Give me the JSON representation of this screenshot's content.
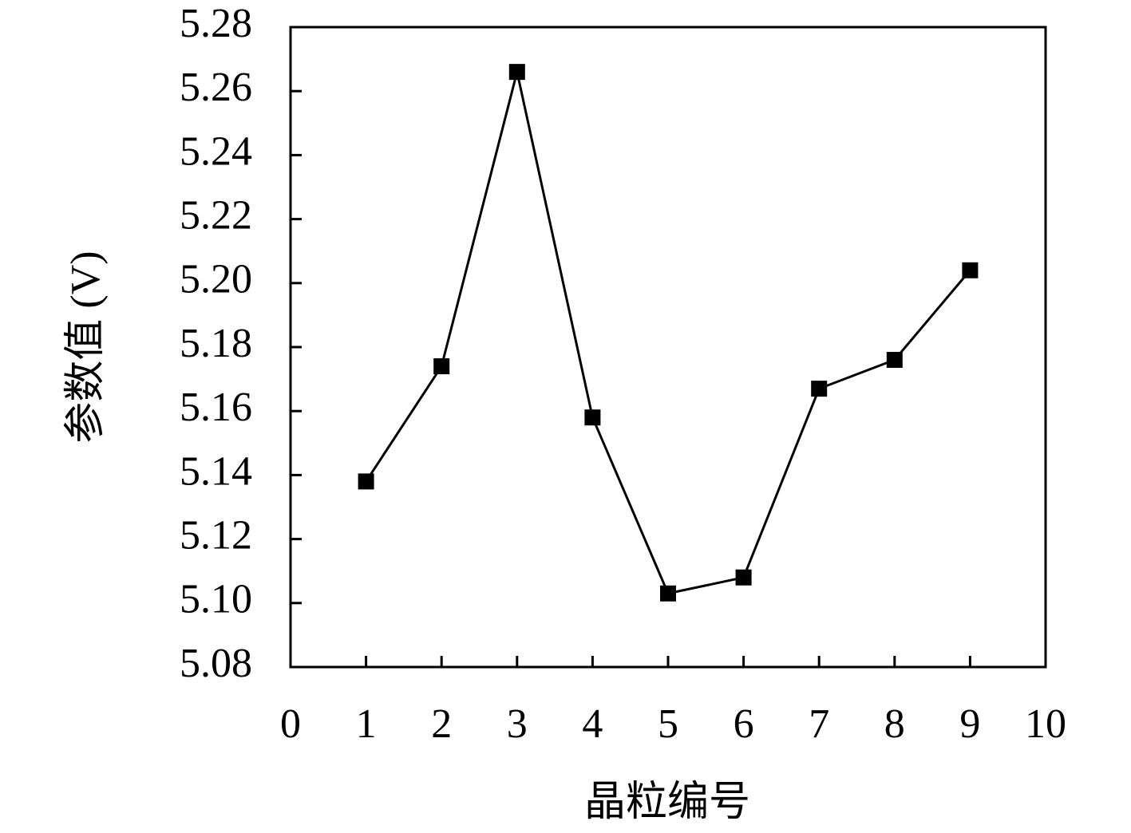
{
  "chart_data": {
    "type": "line",
    "x_label": "晶粒编号",
    "y_label": "参数值 (V)",
    "x": [
      1,
      2,
      3,
      4,
      5,
      6,
      7,
      8,
      9
    ],
    "values": [
      5.138,
      5.174,
      5.266,
      5.158,
      5.103,
      5.108,
      5.167,
      5.176,
      5.204
    ],
    "color": "#000000",
    "marker": "square",
    "xlim": [
      0,
      10
    ],
    "xticks": [
      0,
      1,
      2,
      3,
      4,
      5,
      6,
      7,
      8,
      9,
      10
    ],
    "ylim": [
      5.08,
      5.28
    ],
    "yticks": [
      5.08,
      {
        "value": 5.1,
        "label": "5.10"
      },
      5.12,
      5.14,
      5.16,
      5.18,
      {
        "value": 5.2,
        "label": "5.20"
      },
      5.22,
      5.24,
      5.26,
      5.28
    ],
    "grid": false
  }
}
